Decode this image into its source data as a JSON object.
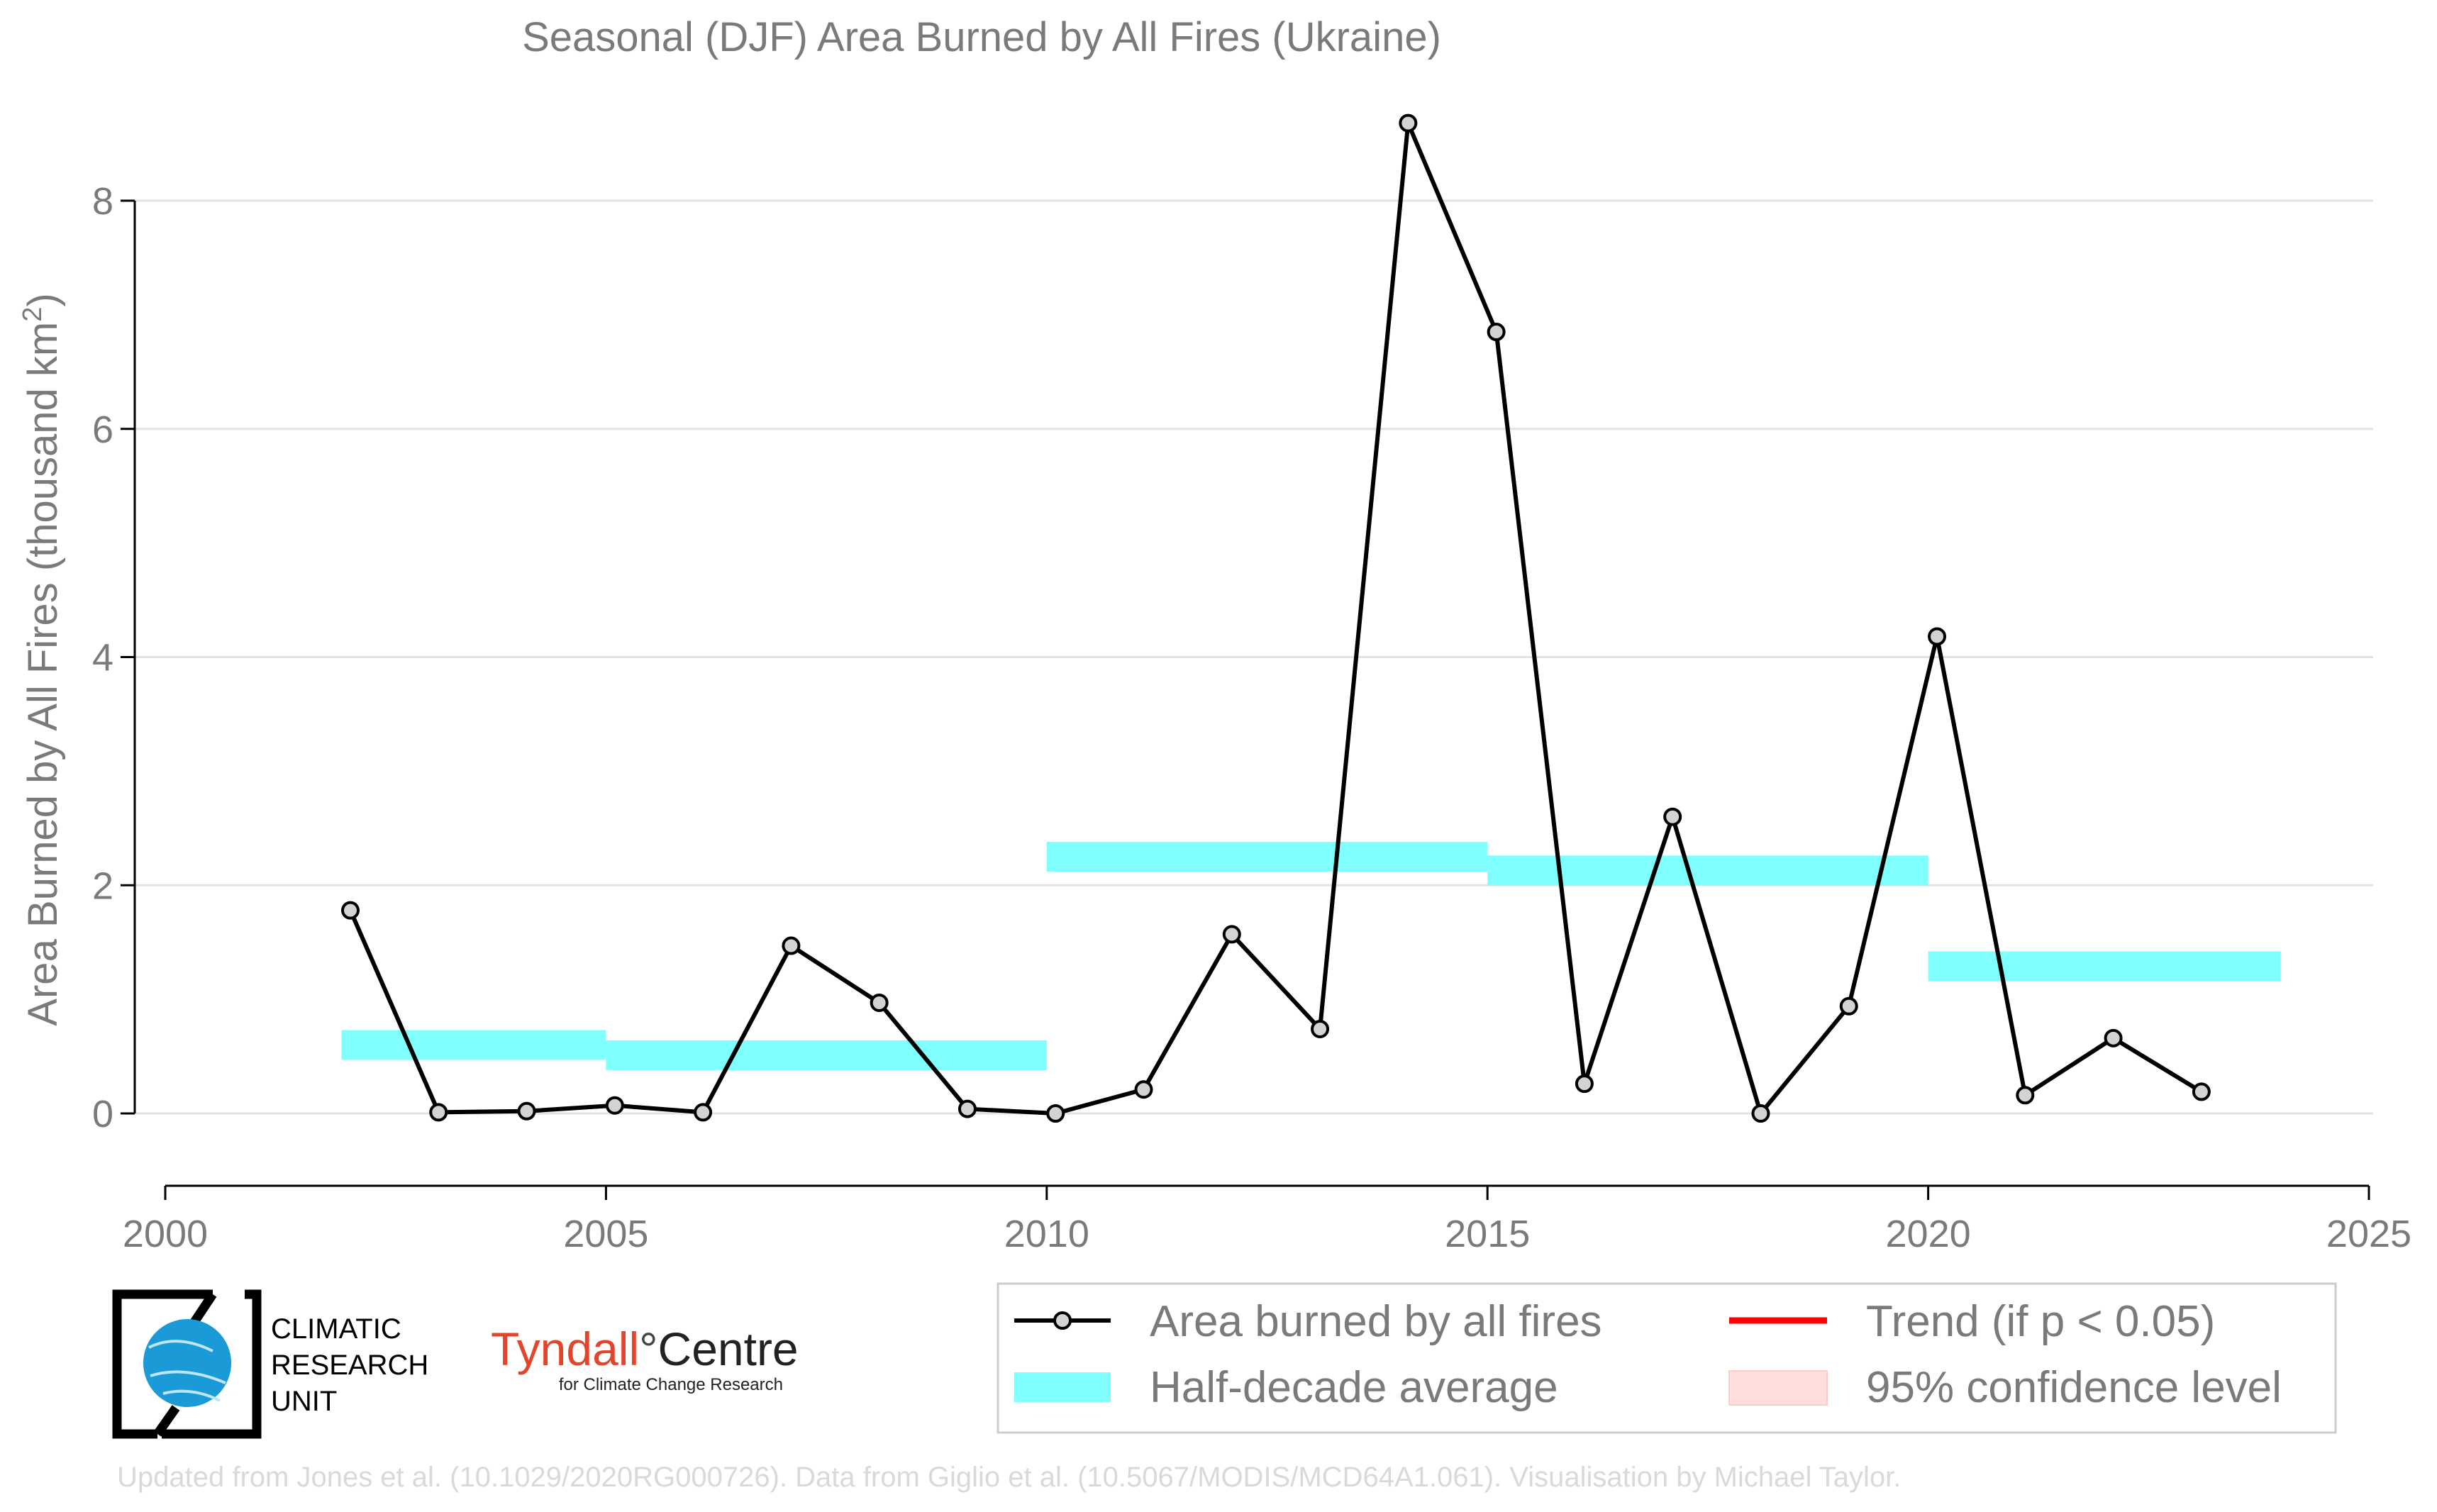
{
  "chart_data": {
    "type": "line",
    "title": "Seasonal (DJF) Area Burned by All Fires (Ukraine)",
    "ylabel": "Area Burned by All Fires (thousand km",
    "ylabel_sup": "2",
    "ylabel_close": ")",
    "xlim": [
      2000,
      2025
    ],
    "ylim": [
      -0.65,
      8.9
    ],
    "x_ticks": [
      2000,
      2005,
      2010,
      2015,
      2020,
      2025
    ],
    "x_tick_labels": [
      "2000",
      "2005",
      "2010",
      "2015",
      "2020",
      "2025"
    ],
    "y_ticks": [
      0,
      2,
      4,
      6,
      8
    ],
    "y_tick_labels": [
      "0",
      "2",
      "4",
      "6",
      "8"
    ],
    "grid": "horizontal",
    "series": [
      {
        "name": "Area burned by all fires",
        "color": "#000000",
        "marker_fill": "#d3d3d3",
        "x": [
          2002,
          2003,
          2004,
          2005,
          2006,
          2007,
          2008,
          2009,
          2010,
          2011,
          2012,
          2013,
          2014,
          2015,
          2016,
          2017,
          2018,
          2019,
          2020,
          2021,
          2022,
          2023
        ],
        "y": [
          1.78,
          0.01,
          0.02,
          0.07,
          0.01,
          1.47,
          0.97,
          0.04,
          0.0,
          0.21,
          1.57,
          0.74,
          8.68,
          6.85,
          0.26,
          2.6,
          0.0,
          0.94,
          4.18,
          0.16,
          0.66,
          0.19
        ]
      }
    ],
    "half_decade_average": {
      "name": "Half-decade average",
      "color": "#80ffff",
      "bars": [
        {
          "x0": 2002,
          "x1": 2005,
          "y": 0.6
        },
        {
          "x0": 2005,
          "x1": 2010,
          "y": 0.51
        },
        {
          "x0": 2010,
          "x1": 2015,
          "y": 2.25
        },
        {
          "x0": 2015,
          "x1": 2020,
          "y": 2.13
        },
        {
          "x0": 2020,
          "x1": 2024,
          "y": 1.29
        }
      ]
    },
    "legend": {
      "position": "bottom-right",
      "items": [
        {
          "label": "Area burned by all fires",
          "kind": "line-marker",
          "color": "#000000"
        },
        {
          "label": "Trend (if p < 0.05)",
          "kind": "line",
          "color": "#ff0000"
        },
        {
          "label": "Half-decade average",
          "kind": "band",
          "color": "#80ffff"
        },
        {
          "label": "95% confidence level",
          "kind": "patch",
          "color": "#ffdede"
        }
      ]
    }
  },
  "logos": {
    "cru": {
      "line1": "CLIMATIC",
      "line2": "RESEARCH",
      "line3": "UNIT",
      "icon": "globe-icon",
      "color": "#1a9ad6"
    },
    "tyndall": {
      "name": "Tyndall",
      "degree": "°",
      "centre": "Centre",
      "sub": "for Climate Change Research",
      "color": "#e2452b"
    }
  },
  "credit": "Updated from Jones et al. (10.1029/2020RG000726). Data from Giglio et al. (10.5067/MODIS/MCD64A1.061). Visualisation by Michael Taylor."
}
